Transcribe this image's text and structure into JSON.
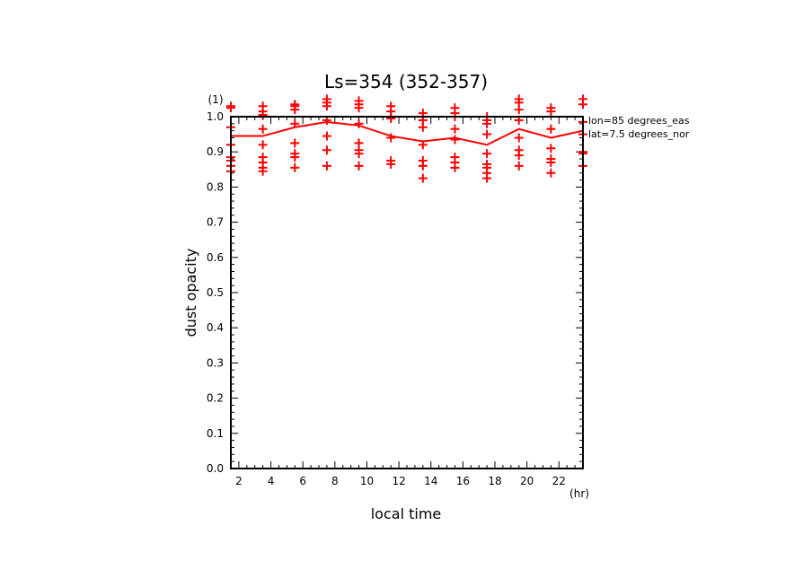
{
  "chart_data": {
    "type": "line",
    "title": "Ls=354 (352-357)",
    "xlabel": "local time",
    "ylabel": "dust opacity",
    "x_unit": "(hr)",
    "y_unit": "(1)",
    "xlim": [
      1.5,
      23.5
    ],
    "ylim": [
      0.0,
      1.0
    ],
    "x_ticks": [
      2,
      4,
      6,
      8,
      10,
      12,
      14,
      16,
      18,
      20,
      22
    ],
    "y_ticks": [
      0.0,
      0.1,
      0.2,
      0.3,
      0.4,
      0.5,
      0.6,
      0.7,
      0.8,
      0.9,
      1.0
    ],
    "annotations": [
      "lon=85 degrees_eas",
      "lat=7.5 degrees_nor"
    ],
    "color": "#ff0000",
    "series": [
      {
        "kind": "line",
        "x": [
          1.5,
          3.5,
          5.5,
          7.5,
          9.5,
          11.5,
          13.5,
          15.5,
          17.5,
          19.5,
          21.5,
          23.5
        ],
        "y": [
          0.945,
          0.945,
          0.97,
          0.985,
          0.975,
          0.945,
          0.93,
          0.94,
          0.92,
          0.965,
          0.94,
          0.96
        ]
      },
      {
        "kind": "scatter",
        "marker": "+",
        "points": [
          [
            1.5,
            1.03
          ],
          [
            1.5,
            1.025
          ],
          [
            1.5,
            0.97
          ],
          [
            1.5,
            0.92
          ],
          [
            1.5,
            0.885
          ],
          [
            1.5,
            0.875
          ],
          [
            1.5,
            0.86
          ],
          [
            1.5,
            0.845
          ],
          [
            3.5,
            1.03
          ],
          [
            3.5,
            1.015
          ],
          [
            3.5,
            1.005
          ],
          [
            3.5,
            0.965
          ],
          [
            3.5,
            0.92
          ],
          [
            3.5,
            0.885
          ],
          [
            3.5,
            0.87
          ],
          [
            3.5,
            0.855
          ],
          [
            3.5,
            0.845
          ],
          [
            5.5,
            1.035
          ],
          [
            5.5,
            1.03
          ],
          [
            5.5,
            1.02
          ],
          [
            5.5,
            0.98
          ],
          [
            5.5,
            0.925
          ],
          [
            5.5,
            0.895
          ],
          [
            5.5,
            0.885
          ],
          [
            5.5,
            0.855
          ],
          [
            7.5,
            1.05
          ],
          [
            7.5,
            1.04
          ],
          [
            7.5,
            1.03
          ],
          [
            7.5,
            0.99
          ],
          [
            7.5,
            0.945
          ],
          [
            7.5,
            0.905
          ],
          [
            7.5,
            0.86
          ],
          [
            9.5,
            1.045
          ],
          [
            9.5,
            1.035
          ],
          [
            9.5,
            1.025
          ],
          [
            9.5,
            0.98
          ],
          [
            9.5,
            0.925
          ],
          [
            9.5,
            0.905
          ],
          [
            9.5,
            0.895
          ],
          [
            9.5,
            0.86
          ],
          [
            11.5,
            1.03
          ],
          [
            11.5,
            1.015
          ],
          [
            11.5,
            1.0
          ],
          [
            11.5,
            0.995
          ],
          [
            11.5,
            0.94
          ],
          [
            11.5,
            0.875
          ],
          [
            11.5,
            0.865
          ],
          [
            13.5,
            1.01
          ],
          [
            13.5,
            1.0
          ],
          [
            13.5,
            0.99
          ],
          [
            13.5,
            0.97
          ],
          [
            13.5,
            0.92
          ],
          [
            13.5,
            0.875
          ],
          [
            13.5,
            0.86
          ],
          [
            13.5,
            0.825
          ],
          [
            15.5,
            1.025
          ],
          [
            15.5,
            1.01
          ],
          [
            15.5,
            1.0
          ],
          [
            15.5,
            0.965
          ],
          [
            15.5,
            0.935
          ],
          [
            15.5,
            0.885
          ],
          [
            15.5,
            0.87
          ],
          [
            15.5,
            0.855
          ],
          [
            17.5,
            1.0
          ],
          [
            17.5,
            0.99
          ],
          [
            17.5,
            0.98
          ],
          [
            17.5,
            0.95
          ],
          [
            17.5,
            0.895
          ],
          [
            17.5,
            0.865
          ],
          [
            17.5,
            0.855
          ],
          [
            17.5,
            0.84
          ],
          [
            17.5,
            0.825
          ],
          [
            19.5,
            1.05
          ],
          [
            19.5,
            1.04
          ],
          [
            19.5,
            1.02
          ],
          [
            19.5,
            0.99
          ],
          [
            19.5,
            0.94
          ],
          [
            19.5,
            0.905
          ],
          [
            19.5,
            0.89
          ],
          [
            19.5,
            0.86
          ],
          [
            21.5,
            1.025
          ],
          [
            21.5,
            1.015
          ],
          [
            21.5,
            0.965
          ],
          [
            21.5,
            0.91
          ],
          [
            21.5,
            0.88
          ],
          [
            21.5,
            0.87
          ],
          [
            21.5,
            0.84
          ],
          [
            23.5,
            1.05
          ],
          [
            23.5,
            1.035
          ],
          [
            23.5,
            0.985
          ],
          [
            23.5,
            0.95
          ],
          [
            23.5,
            0.9
          ],
          [
            23.5,
            0.895
          ],
          [
            23.5,
            0.86
          ]
        ]
      }
    ]
  }
}
